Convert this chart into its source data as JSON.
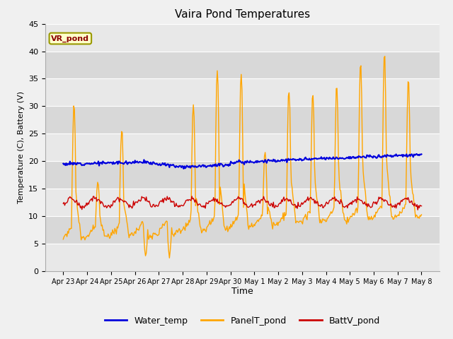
{
  "title": "Vaira Pond Temperatures",
  "ylabel": "Temperature (C), Battery (V)",
  "xlabel": "Time",
  "ylim": [
    0,
    45
  ],
  "site_label": "VR_pond",
  "legend_labels": [
    "Water_temp",
    "PanelT_pond",
    "BattV_pond"
  ],
  "legend_colors": [
    "#0000dd",
    "#ffa500",
    "#cc0000"
  ],
  "fig_bg_color": "#f0f0f0",
  "plot_bg_color": "#e0e0e0",
  "band_colors": [
    "#e8e8e8",
    "#d8d8d8"
  ],
  "xtick_labels": [
    "Apr 23",
    "Apr 24",
    "Apr 25",
    "Apr 26",
    "Apr 27",
    "Apr 28",
    "Apr 29",
    "Apr 30",
    "May 1",
    "May 2",
    "May 3",
    "May 4",
    "May 5",
    "May 6",
    "May 7",
    "May 8"
  ],
  "ytick_values": [
    0,
    5,
    10,
    15,
    20,
    25,
    30,
    35,
    40,
    45
  ],
  "num_points": 480,
  "seed": 12
}
